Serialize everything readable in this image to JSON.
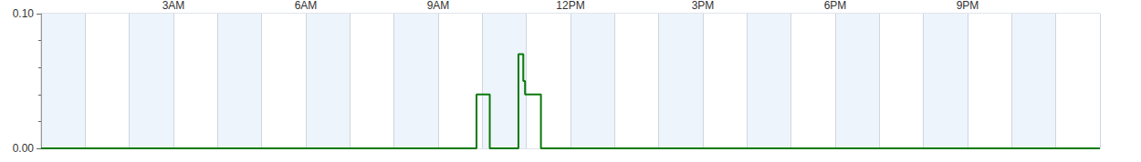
{
  "chart_data": {
    "type": "line",
    "line_style": "step",
    "x": [
      0,
      9.87,
      10.17,
      10.82,
      10.93,
      10.97,
      11.33,
      24
    ],
    "values": [
      0,
      0.04,
      0,
      0.07,
      0.05,
      0.04,
      0,
      0
    ],
    "color": "#0a7a0a",
    "xlim": [
      0,
      24
    ],
    "xticks": [
      {
        "value": 3,
        "label": "3AM"
      },
      {
        "value": 6,
        "label": "6AM"
      },
      {
        "value": 9,
        "label": "9AM"
      },
      {
        "value": 12,
        "label": "12PM"
      },
      {
        "value": 15,
        "label": "3PM"
      },
      {
        "value": 18,
        "label": "6PM"
      },
      {
        "value": 21,
        "label": "9PM"
      }
    ],
    "ylim": [
      0,
      0.1
    ],
    "yticks": [
      {
        "value": 0,
        "label": "0.00"
      },
      {
        "value": 0.1,
        "label": "0.10"
      }
    ],
    "grid": true
  }
}
